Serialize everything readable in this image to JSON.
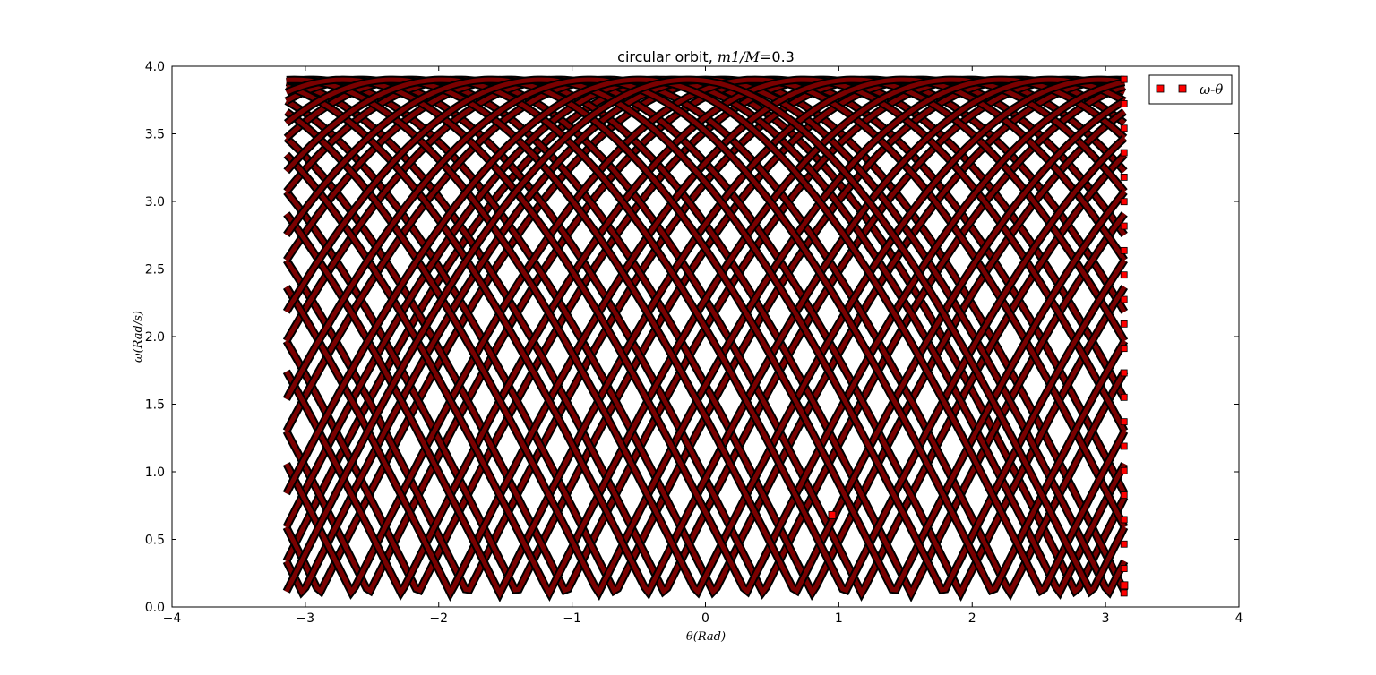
{
  "chart_data": {
    "type": "scatter",
    "title_prefix": "circular orbit, ",
    "title_math": "m1/M",
    "title_suffix": "=0.3",
    "xlabel": "θ(Rad)",
    "ylabel": "ω(Rad/s)",
    "xlim": [
      -4,
      4
    ],
    "ylim": [
      0.0,
      4.0
    ],
    "xticks": [
      -4,
      -3,
      -2,
      -1,
      0,
      1,
      2,
      3,
      4
    ],
    "xtick_labels": [
      "−4",
      "−3",
      "−2",
      "−1",
      "0",
      "1",
      "2",
      "3",
      "4"
    ],
    "yticks": [
      0.0,
      0.5,
      1.0,
      1.5,
      2.0,
      2.5,
      3.0,
      3.5,
      4.0
    ],
    "ytick_labels": [
      "0.0",
      "0.5",
      "1.0",
      "1.5",
      "2.0",
      "2.5",
      "3.0",
      "3.5",
      "4.0"
    ],
    "grid": false,
    "legend_position": "top-right",
    "series": [
      {
        "name": "ω-θ",
        "marker": "square",
        "color": "#ff0000",
        "edge_color": "#000000",
        "theta_range": [
          -3.14159,
          3.14159
        ],
        "omega_range": [
          0.1,
          3.9
        ],
        "dense_bands": true
      }
    ],
    "highlighted_points": [
      {
        "x": 0.95,
        "y": 0.68
      },
      {
        "x": 3.14,
        "y": 0.16
      }
    ]
  }
}
